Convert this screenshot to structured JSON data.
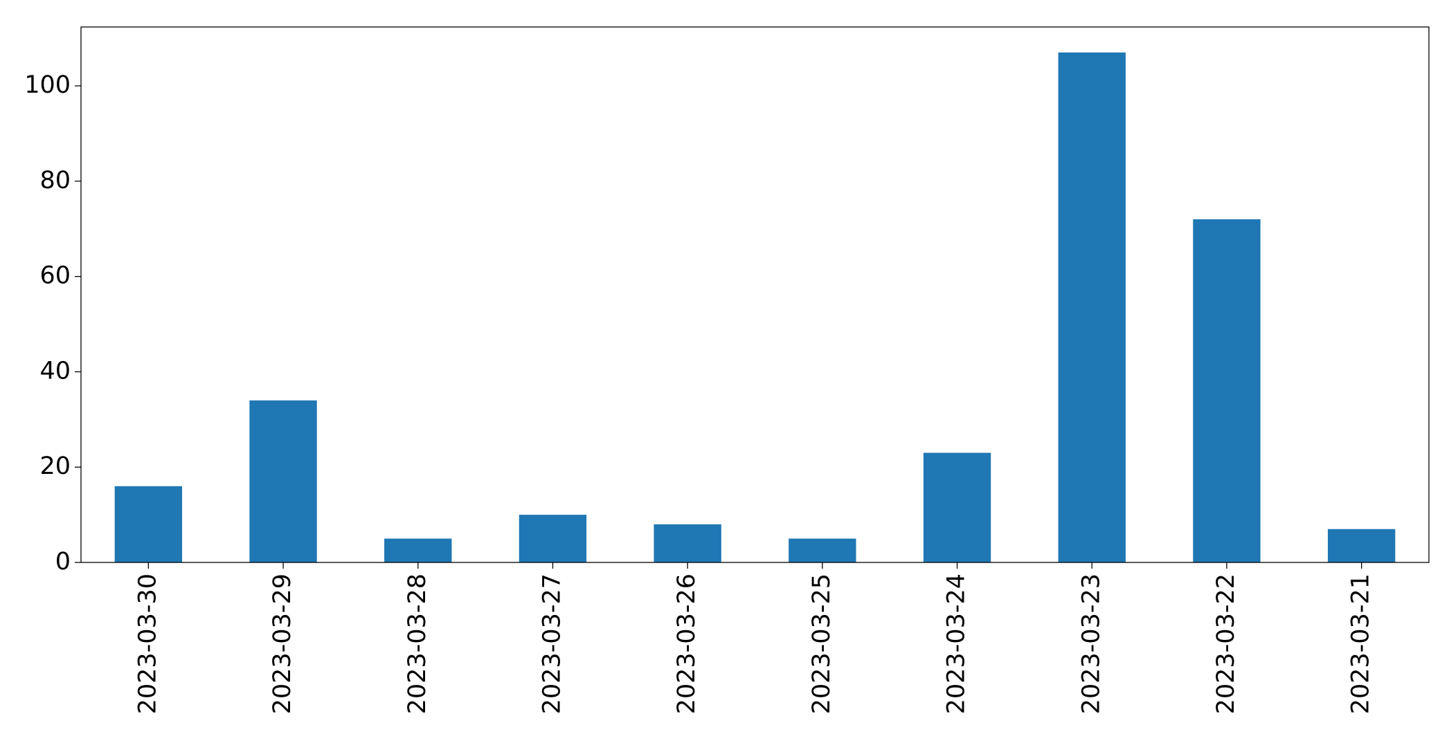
{
  "chart_data": {
    "type": "bar",
    "categories": [
      "2023-03-30",
      "2023-03-29",
      "2023-03-28",
      "2023-03-27",
      "2023-03-26",
      "2023-03-25",
      "2023-03-24",
      "2023-03-23",
      "2023-03-22",
      "2023-03-21"
    ],
    "values": [
      16,
      34,
      5,
      10,
      8,
      5,
      23,
      107,
      72,
      7
    ],
    "color": "#1f77b4",
    "ylim": [
      0,
      112.35
    ],
    "yticks": [
      0,
      20,
      40,
      60,
      80,
      100
    ],
    "grid": false
  }
}
